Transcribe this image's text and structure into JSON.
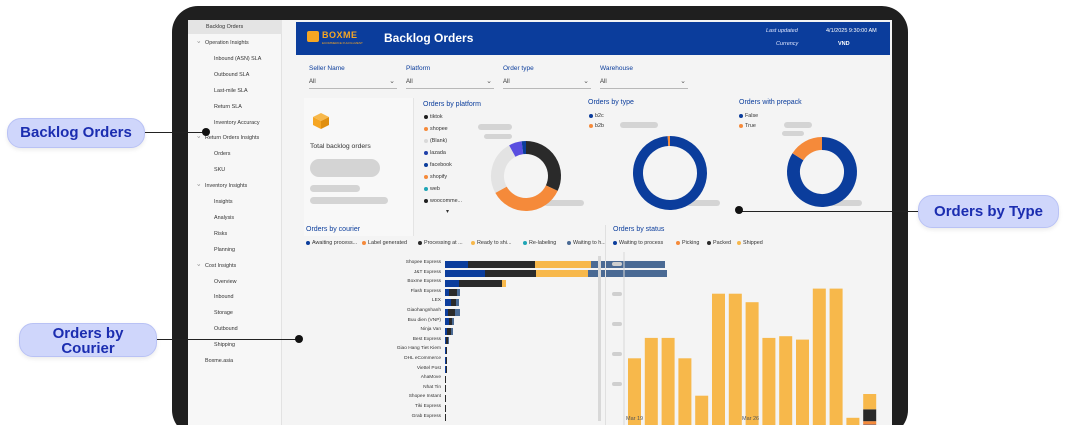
{
  "callouts": {
    "backlog": "Backlog Orders",
    "type": "Orders by Type",
    "courier_line1": "Orders by",
    "courier_line2": "Courier"
  },
  "sidebar": {
    "items": [
      {
        "label": "Backlog Orders",
        "kind": "active"
      },
      {
        "label": "Operation Insights",
        "kind": "section"
      },
      {
        "label": "Inbound (ASN) SLA",
        "kind": "sub"
      },
      {
        "label": "Outbound SLA",
        "kind": "sub"
      },
      {
        "label": "Last-mile SLA",
        "kind": "sub"
      },
      {
        "label": "Return SLA",
        "kind": "sub"
      },
      {
        "label": "Inventory Accuracy",
        "kind": "sub"
      },
      {
        "label": "Return Orders Insights",
        "kind": "section"
      },
      {
        "label": "Orders",
        "kind": "sub"
      },
      {
        "label": "SKU",
        "kind": "sub"
      },
      {
        "label": "Inventory Insights",
        "kind": "section"
      },
      {
        "label": "Insights",
        "kind": "sub"
      },
      {
        "label": "Analysis",
        "kind": "sub"
      },
      {
        "label": "Risks",
        "kind": "sub"
      },
      {
        "label": "Planning",
        "kind": "sub"
      },
      {
        "label": "Cost Insights",
        "kind": "section"
      },
      {
        "label": "Overview",
        "kind": "sub"
      },
      {
        "label": "Inbound",
        "kind": "sub"
      },
      {
        "label": "Storage",
        "kind": "sub"
      },
      {
        "label": "Outbound",
        "kind": "sub"
      },
      {
        "label": "Shipping",
        "kind": "sub"
      },
      {
        "label": "Boxme.asia",
        "kind": "link"
      }
    ]
  },
  "header": {
    "logo": "BOXME",
    "logo_sub": "ECOMMERCE FULFILLMENT",
    "title": "Backlog Orders",
    "last_updated_label": "Last updated",
    "last_updated_value": "4/1/2025 9:30:00 AM",
    "currency_label": "Currency",
    "currency_value": "VND"
  },
  "filters": [
    {
      "label": "Seller Name",
      "value": "All"
    },
    {
      "label": "Platform",
      "value": "All"
    },
    {
      "label": "Order type",
      "value": "All"
    },
    {
      "label": "Warehouse",
      "value": "All"
    }
  ],
  "total_card": {
    "label": "Total backlog orders",
    "icon": "box-icon"
  },
  "platform": {
    "title": "Orders by platform",
    "legend": [
      {
        "label": "tiktok",
        "color": "#1f1f1f"
      },
      {
        "label": "shopee",
        "color": "#f58a3a"
      },
      {
        "label": "(Blank)",
        "color": "#d9d9d9"
      },
      {
        "label": "lazada",
        "color": "#1e3fa8"
      },
      {
        "label": "facebook",
        "color": "#0b3d9c"
      },
      {
        "label": "shopify",
        "color": "#f58a3a"
      },
      {
        "label": "web",
        "color": "#1fa5b5"
      },
      {
        "label": "woocomme...",
        "color": "#1f1f1f"
      }
    ],
    "slices": [
      {
        "name": "tiktok",
        "value": 32,
        "color": "#2a2a2a"
      },
      {
        "name": "shopee",
        "value": 35,
        "color": "#f58a3a"
      },
      {
        "name": "(Blank)",
        "value": 25,
        "color": "#e3e3e3"
      },
      {
        "name": "lazada",
        "value": 6,
        "color": "#5a4ee0"
      },
      {
        "name": "facebook",
        "value": 2,
        "color": "#0b3d9c"
      }
    ]
  },
  "type": {
    "title": "Orders by type",
    "legend": [
      {
        "label": "b2c",
        "color": "#0b3d9c"
      },
      {
        "label": "b2b",
        "color": "#f58a3a"
      }
    ],
    "slices": [
      {
        "name": "b2c",
        "value": 99,
        "color": "#0b3d9c"
      },
      {
        "name": "b2b",
        "value": 1,
        "color": "#f58a3a"
      }
    ]
  },
  "prepack": {
    "title": "Orders with prepack",
    "legend": [
      {
        "label": "False",
        "color": "#0b3d9c"
      },
      {
        "label": "True",
        "color": "#f58a3a"
      }
    ],
    "slices": [
      {
        "name": "False",
        "value": 84,
        "color": "#0b3d9c"
      },
      {
        "name": "True",
        "value": 16,
        "color": "#f58a3a"
      }
    ]
  },
  "courier": {
    "title": "Orders by courier",
    "legend": [
      {
        "label": "Awaiting process...",
        "color": "#0b3d9c"
      },
      {
        "label": "Label generated",
        "color": "#f58a3a"
      },
      {
        "label": "Processing at ...",
        "color": "#2a2a2a"
      },
      {
        "label": "Ready to shi...",
        "color": "#f7b84b"
      },
      {
        "label": "Re-labeling",
        "color": "#1fa5b5"
      },
      {
        "label": "Waiting to h...",
        "color": "#4a6a94"
      }
    ]
  },
  "status": {
    "title": "Orders by status",
    "legend": [
      {
        "label": "Waiting to process",
        "color": "#0b3d9c"
      },
      {
        "label": "Picking",
        "color": "#f58a3a"
      },
      {
        "label": "Packed",
        "color": "#2a2a2a"
      },
      {
        "label": "Shipped",
        "color": "#f7b84b"
      }
    ]
  },
  "chart_data": [
    {
      "type": "bar",
      "title": "Orders by courier",
      "orientation": "horizontal",
      "categories": [
        "Shopee Express",
        "J&T Express",
        "Boxme Express",
        "Flash Express",
        "LEX",
        "Giaohangnhanh",
        "Buu dien (VNP)",
        "Ninja Van",
        "Best Express",
        "Giao Hang Tiet Kiem",
        "DHL eCommerce",
        "Viettel Post",
        "AhaMove",
        "Nhat Tin",
        "Shopee Instant",
        "Tiki Express",
        "Grab Express"
      ],
      "series": [
        {
          "name": "Awaiting process...",
          "values": [
            23,
            40,
            14,
            4,
            6,
            3,
            4,
            2,
            1,
            1,
            0.5,
            0.5,
            0.4,
            0.3,
            0.3,
            0.2,
            0.2
          ]
        },
        {
          "name": "Label generated",
          "values": [
            0,
            0,
            0,
            0,
            0,
            0,
            0,
            0,
            0,
            0,
            0,
            0,
            0,
            0,
            0,
            0,
            0
          ]
        },
        {
          "name": "Processing at ...",
          "values": [
            67,
            51,
            43,
            8,
            5,
            7,
            3,
            4,
            2,
            1,
            0.5,
            0.5,
            0.4,
            0.3,
            0.3,
            0.2,
            0.2
          ]
        },
        {
          "name": "Ready to shi...",
          "values": [
            56,
            52,
            4,
            0,
            0,
            0,
            0,
            0,
            0,
            0,
            0,
            0,
            0,
            0,
            0,
            0,
            0
          ]
        },
        {
          "name": "Re-labeling",
          "values": [
            0,
            0,
            0,
            0,
            0,
            0,
            0,
            0,
            0,
            0,
            0,
            0,
            0,
            0,
            0,
            0,
            0
          ]
        },
        {
          "name": "Waiting to h...",
          "values": [
            74,
            79,
            0,
            3,
            3,
            5,
            2,
            2,
            1,
            0,
            0,
            0,
            0,
            0,
            0,
            0,
            0
          ]
        }
      ]
    },
    {
      "type": "bar",
      "title": "Orders by status",
      "x_tick_labels": [
        "Mar 19",
        "Mar 26"
      ],
      "categories_count": 15,
      "series": [
        {
          "name": "Waiting to process",
          "values": [
            0,
            0,
            0,
            0,
            0,
            0,
            0,
            0,
            0,
            0,
            0,
            0,
            0,
            0,
            2
          ]
        },
        {
          "name": "Picking",
          "values": [
            0,
            0,
            0,
            0,
            0,
            0,
            0,
            0,
            0,
            0,
            0,
            0,
            0,
            0,
            2
          ]
        },
        {
          "name": "Packed",
          "values": [
            1,
            1,
            1,
            1,
            1,
            1,
            1,
            1,
            1,
            1,
            1,
            1,
            1,
            1,
            7
          ]
        },
        {
          "name": "Shipped",
          "values": [
            40,
            52,
            52,
            40,
            18,
            78,
            78,
            73,
            52,
            53,
            51,
            81,
            81,
            5,
            9
          ]
        }
      ]
    }
  ]
}
